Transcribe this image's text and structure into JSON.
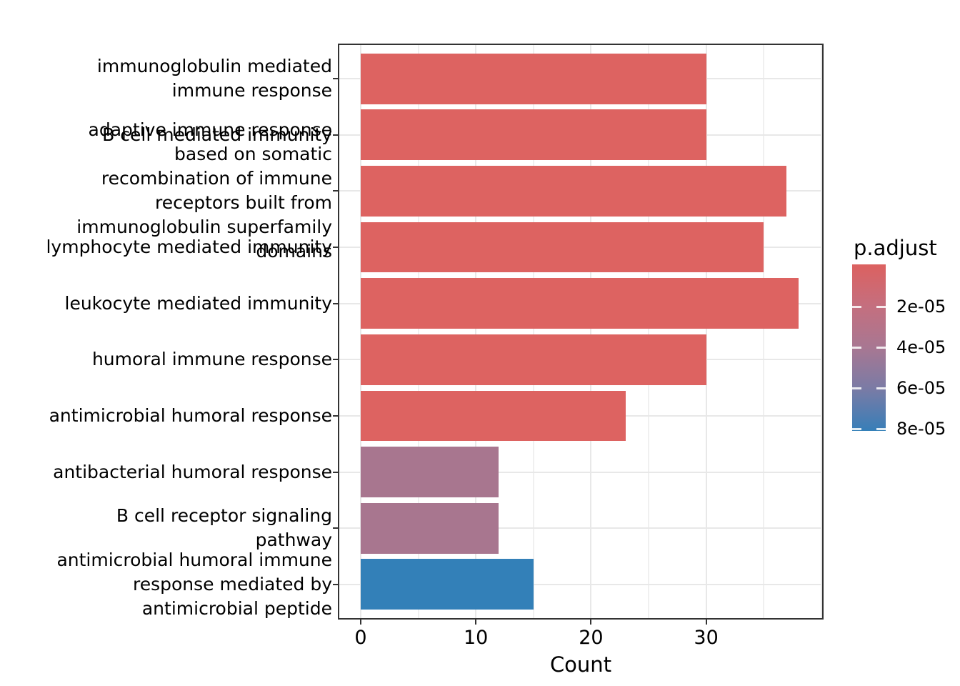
{
  "chart_data": {
    "type": "bar",
    "orientation": "horizontal",
    "title": "",
    "xlabel": "Count",
    "ylabel": "",
    "xlim": [
      -1.9,
      40.1
    ],
    "grid": true,
    "x_tick_labels": [
      "0",
      "10",
      "20",
      "30"
    ],
    "x_tick_values": [
      0,
      10,
      20,
      30
    ],
    "x_major_gridlines": [
      0,
      10,
      20,
      30,
      40
    ],
    "x_minor_gridlines": [
      5,
      15,
      25,
      35
    ],
    "bars": [
      {
        "label": "immunoglobulin mediated\nimmune response",
        "value": 30,
        "color": "#DD6361"
      },
      {
        "label": "B cell mediated immunity",
        "value": 30,
        "color": "#DD6361"
      },
      {
        "label": "adaptive immune response\nbased on somatic\nrecombination of immune\nreceptors built from\nimmunoglobulin superfamily\ndomains",
        "value": 37,
        "color": "#DD6361"
      },
      {
        "label": "lymphocyte mediated immunity",
        "value": 35,
        "color": "#DD6361"
      },
      {
        "label": "leukocyte mediated immunity",
        "value": 38,
        "color": "#DD6361"
      },
      {
        "label": "humoral immune response",
        "value": 30,
        "color": "#DD6361"
      },
      {
        "label": "antimicrobial humoral response",
        "value": 23,
        "color": "#DD6361"
      },
      {
        "label": "antibacterial humoral response",
        "value": 12,
        "color": "#A8768F"
      },
      {
        "label": "B cell receptor signaling\npathway",
        "value": 12,
        "color": "#A8768F"
      },
      {
        "label": "antimicrobial humoral immune\nresponse mediated by\nantimicrobial peptide",
        "value": 15,
        "color": "#3380B8"
      }
    ],
    "legend": {
      "title": "p.adjust",
      "position": "right",
      "tick_labels": [
        "2e-05",
        "4e-05",
        "6e-05",
        "8e-05"
      ],
      "gradient_colors": [
        "#DC6160",
        "#C46F7F",
        "#A87792",
        "#7B7BA5",
        "#3B7EB7",
        "#3380B8"
      ]
    },
    "colors": {
      "grid_major": "#E8E8E8",
      "grid_minor": "#F0F0F0",
      "panel_border": "#333333",
      "text": "#000000"
    }
  }
}
